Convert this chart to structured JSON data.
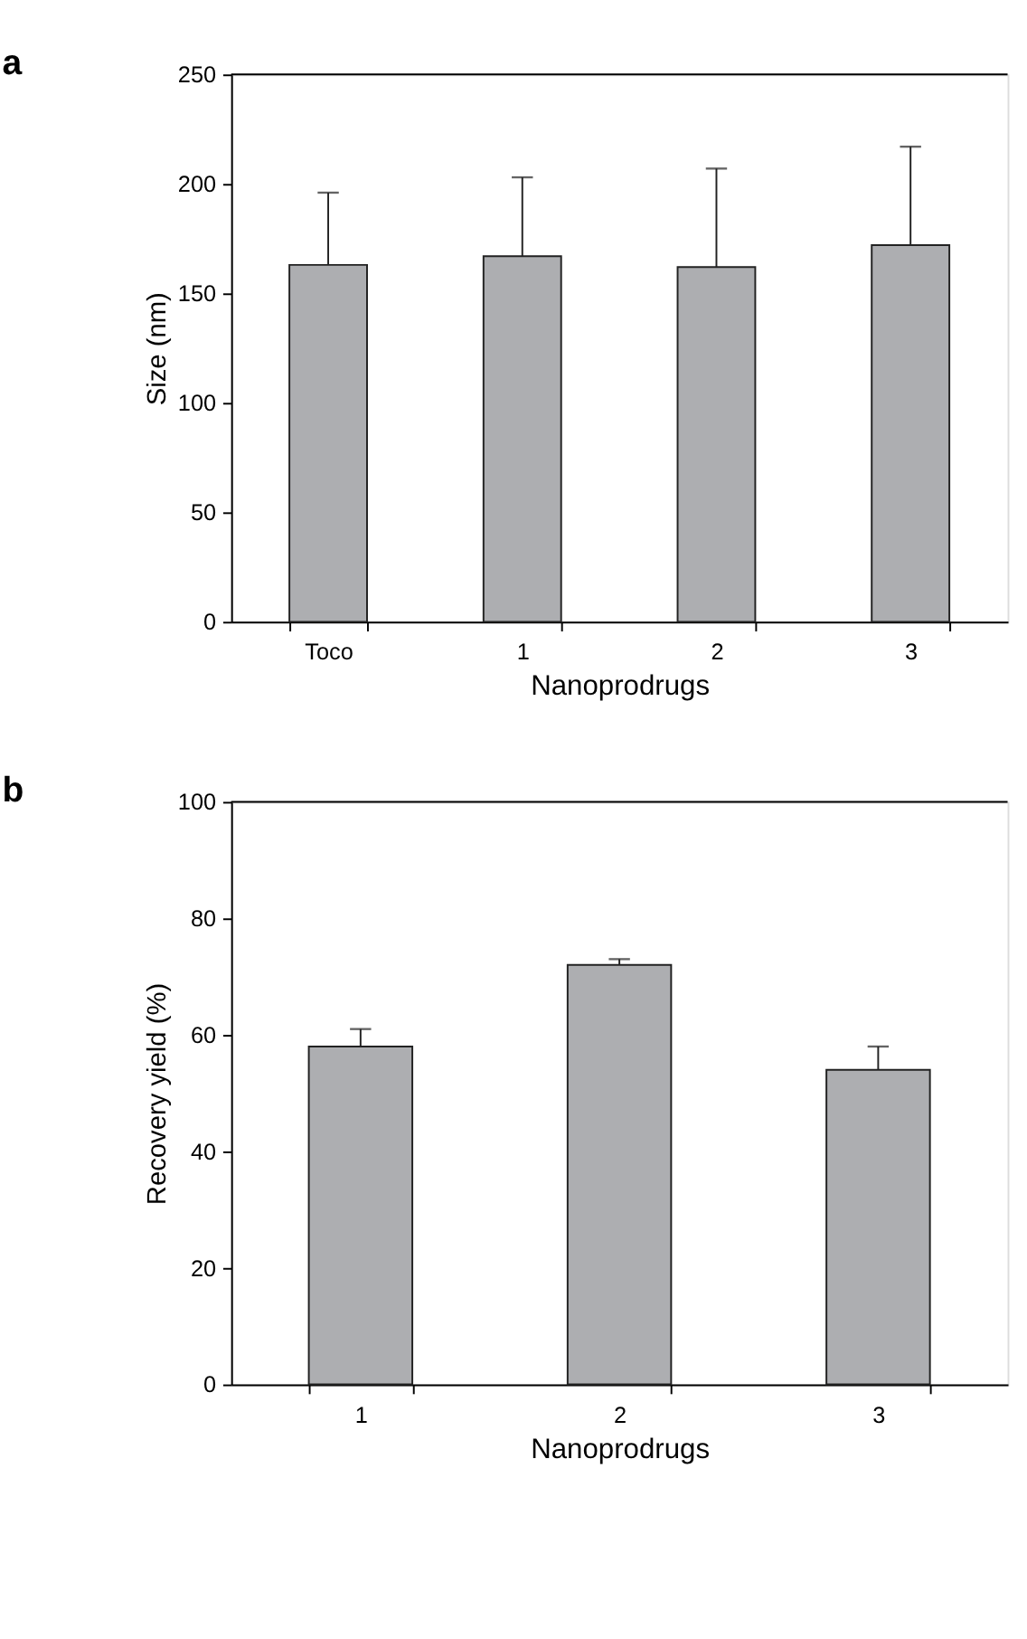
{
  "chart_data": [
    {
      "type": "bar",
      "title": "a",
      "xlabel": "Nanoprodrugs",
      "ylabel": "Size (nm)",
      "categories": [
        "Toco",
        "1",
        "2",
        "3"
      ],
      "values": [
        163,
        167,
        162,
        172
      ],
      "errors": [
        [
          163,
          196
        ],
        [
          167,
          203
        ],
        [
          162,
          207
        ],
        [
          172,
          217
        ]
      ],
      "color": "#adaeb1",
      "ylim": [
        0,
        250
      ],
      "yticks": [
        0,
        50,
        100,
        150,
        200,
        250
      ],
      "grid": false
    },
    {
      "type": "bar",
      "title": "b",
      "xlabel": "Nanoprodrugs",
      "ylabel": "Recovery yield (%)",
      "categories": [
        "1",
        "2",
        "3"
      ],
      "values": [
        58,
        72,
        54
      ],
      "errors": [
        [
          58,
          61
        ],
        [
          72,
          73
        ],
        [
          54,
          58
        ]
      ],
      "color": "#adaeb1",
      "ylim": [
        0,
        100
      ],
      "yticks": [
        0,
        20,
        40,
        60,
        80,
        100
      ],
      "grid": false
    }
  ]
}
